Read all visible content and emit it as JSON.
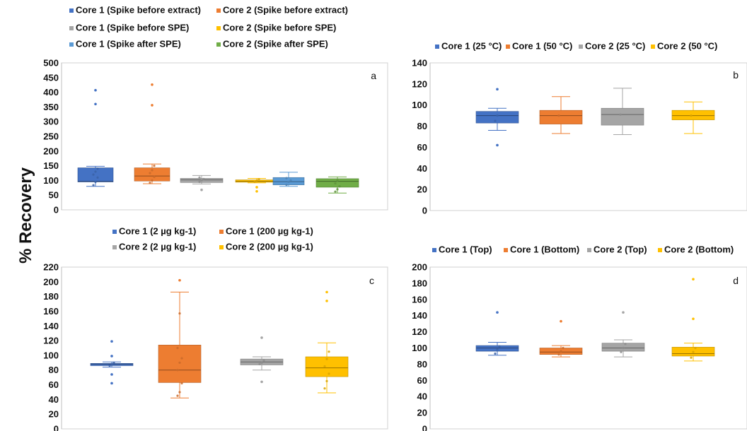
{
  "figure": {
    "ylabel": "% Recovery"
  },
  "chart_data": [
    {
      "type": "box",
      "panel": "a",
      "ylim": [
        0,
        500
      ],
      "yticks": [
        0,
        50,
        100,
        150,
        200,
        250,
        300,
        350,
        400,
        450,
        500
      ],
      "grid": false,
      "legend_position": "top-left",
      "series": [
        {
          "name": "Core 1 (Spike before extract)",
          "color": "#4472C4",
          "min": 80,
          "q1": 95,
          "median": 97,
          "q3": 143,
          "max": 148,
          "points": [
            84,
            95,
            110,
            120,
            130,
            140
          ],
          "outliers": [
            360,
            407
          ]
        },
        {
          "name": "Core 2 (Spike before extract)",
          "color": "#ED7D31",
          "min": 89,
          "q1": 98,
          "median": 115,
          "q3": 143,
          "max": 156,
          "points": [
            92,
            100,
            112,
            125,
            135,
            150
          ],
          "outliers": [
            356,
            426
          ]
        },
        {
          "name": "Core 1 (Spike before SPE)",
          "color": "#A5A5A5",
          "min": 88,
          "q1": 93,
          "median": 102,
          "q3": 107,
          "max": 117,
          "points": [
            95,
            100,
            105,
            110
          ],
          "outliers": [
            68
          ]
        },
        {
          "name": "Core 2 (Spike before SPE)",
          "color": "#FFC000",
          "min": 92,
          "q1": 94,
          "median": 97,
          "q3": 102,
          "max": 107,
          "points": [
            95,
            100,
            104
          ],
          "outliers": [
            63,
            77
          ]
        },
        {
          "name": "Core 1 (Spike after SPE)",
          "color": "#5B9BD5",
          "min": 80,
          "q1": 85,
          "median": 96,
          "q3": 110,
          "max": 128,
          "points": [
            85,
            95,
            100,
            108
          ],
          "outliers": []
        },
        {
          "name": "Core 2 (Spike after SPE)",
          "color": "#70AD47",
          "min": 57,
          "q1": 77,
          "median": 97,
          "q3": 106,
          "max": 112,
          "points": [
            62,
            70,
            80,
            90,
            100
          ],
          "outliers": []
        }
      ]
    },
    {
      "type": "box",
      "panel": "b",
      "ylim": [
        0,
        140
      ],
      "yticks": [
        0,
        20,
        40,
        60,
        80,
        100,
        120,
        140
      ],
      "grid": false,
      "legend_position": "top",
      "series": [
        {
          "name": "Core 1 (25 °C)",
          "color": "#4472C4",
          "min": 76,
          "q1": 83,
          "median": 90,
          "q3": 94,
          "max": 97,
          "points": [
            85,
            90
          ],
          "outliers": [
            62,
            115
          ]
        },
        {
          "name": "Core 1 (50 °C)",
          "color": "#ED7D31",
          "min": 73,
          "q1": 82,
          "median": 90,
          "q3": 95,
          "max": 108,
          "points": [
            90
          ],
          "outliers": []
        },
        {
          "name": "Core 2 (25 °C)",
          "color": "#A5A5A5",
          "min": 72,
          "q1": 81,
          "median": 91,
          "q3": 97,
          "max": 116,
          "points": [
            91
          ],
          "outliers": []
        },
        {
          "name": "Core 2 (50 °C)",
          "color": "#FFC000",
          "min": 73,
          "q1": 86,
          "median": 90,
          "q3": 95,
          "max": 103,
          "points": [
            90
          ],
          "outliers": []
        }
      ]
    },
    {
      "type": "box",
      "panel": "c",
      "ylim": [
        0,
        220
      ],
      "yticks": [
        0,
        20,
        40,
        60,
        80,
        100,
        120,
        140,
        160,
        180,
        200,
        220
      ],
      "grid": false,
      "legend_position": "top",
      "series": [
        {
          "name": "Core 1 (2 µg kg-1)",
          "color": "#4472C4",
          "min": 84,
          "q1": 86,
          "median": 88,
          "q3": 89,
          "max": 91,
          "points": [
            86,
            88,
            90
          ],
          "outliers": [
            62,
            74,
            99,
            119
          ]
        },
        {
          "name": "Core 1 (200 µg kg-1)",
          "color": "#ED7D31",
          "min": 42,
          "q1": 63,
          "median": 80,
          "q3": 114,
          "max": 186,
          "points": [
            45,
            50,
            62,
            80,
            90,
            96,
            110,
            157
          ],
          "outliers": [
            202
          ]
        },
        {
          "name": "Core 2 (2 µg kg-1)",
          "color": "#A5A5A5",
          "min": 80,
          "q1": 87,
          "median": 91,
          "q3": 95,
          "max": 98,
          "points": [
            88,
            90,
            93
          ],
          "outliers": [
            64,
            124
          ]
        },
        {
          "name": "Core 2 (200 µg kg-1)",
          "color": "#FFC000",
          "min": 49,
          "q1": 71,
          "median": 83,
          "q3": 98,
          "max": 117,
          "points": [
            55,
            65,
            75,
            85,
            95,
            105
          ],
          "outliers": [
            174,
            186
          ]
        }
      ]
    },
    {
      "type": "box",
      "panel": "d",
      "ylim": [
        0,
        200
      ],
      "yticks": [
        0,
        20,
        40,
        60,
        80,
        100,
        120,
        140,
        160,
        180,
        200
      ],
      "grid": false,
      "legend_position": "top",
      "series": [
        {
          "name": "Core 1 (Top)",
          "color": "#4472C4",
          "min": 91,
          "q1": 96,
          "median": 100,
          "q3": 103,
          "max": 107,
          "points": [
            93,
            98,
            102
          ],
          "outliers": [
            144
          ]
        },
        {
          "name": "Core 1 (Bottom)",
          "color": "#ED7D31",
          "min": 89,
          "q1": 92,
          "median": 95,
          "q3": 100,
          "max": 103,
          "points": [
            92,
            96,
            100
          ],
          "outliers": [
            133
          ]
        },
        {
          "name": "Core 2 (Top)",
          "color": "#A5A5A5",
          "min": 89,
          "q1": 96,
          "median": 100,
          "q3": 106,
          "max": 110,
          "points": [
            95,
            100,
            105
          ],
          "outliers": [
            144
          ]
        },
        {
          "name": "Core 2 (Bottom)",
          "color": "#FFC000",
          "min": 84,
          "q1": 90,
          "median": 93,
          "q3": 101,
          "max": 106,
          "points": [
            88,
            95,
            100
          ],
          "outliers": [
            136,
            185
          ]
        }
      ]
    }
  ]
}
